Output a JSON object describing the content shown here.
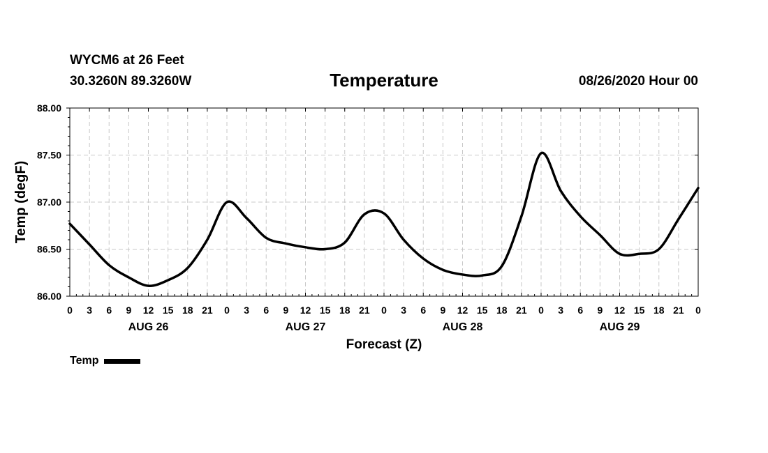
{
  "header": {
    "station": "WYCM6 at 26 Feet",
    "coords": "30.3260N 89.3260W",
    "title": "Temperature",
    "datetime": "08/26/2020 Hour 00"
  },
  "legend": {
    "label": "Temp"
  },
  "chart_data": {
    "type": "line",
    "title": "Temperature",
    "xlabel": "Forecast (Z)",
    "ylabel": "Temp (degF)",
    "xlim": [
      0,
      96
    ],
    "ylim": [
      86.0,
      88.0
    ],
    "yticks": [
      "86.00",
      "86.50",
      "87.00",
      "87.50",
      "88.00"
    ],
    "xtick_labels": [
      "0",
      "3",
      "6",
      "9",
      "12",
      "15",
      "18",
      "21",
      "0",
      "3",
      "6",
      "9",
      "12",
      "15",
      "18",
      "21",
      "0",
      "3",
      "6",
      "9",
      "12",
      "15",
      "18",
      "21",
      "0",
      "3",
      "6",
      "9",
      "12",
      "15",
      "18",
      "21",
      "0"
    ],
    "day_labels": [
      {
        "label": "AUG 26",
        "hour": 12
      },
      {
        "label": "AUG 27",
        "hour": 36
      },
      {
        "label": "AUG 28",
        "hour": 60
      },
      {
        "label": "AUG 29",
        "hour": 84
      }
    ],
    "grid": true,
    "series": [
      {
        "name": "Temp",
        "x": [
          0,
          3,
          6,
          9,
          12,
          15,
          18,
          21,
          24,
          27,
          30,
          33,
          36,
          39,
          42,
          45,
          48,
          51,
          54,
          57,
          60,
          63,
          66,
          69,
          72,
          75,
          78,
          81,
          84,
          87,
          90,
          93,
          96
        ],
        "values": [
          86.77,
          86.55,
          86.33,
          86.2,
          86.11,
          86.17,
          86.3,
          86.6,
          87.0,
          86.83,
          86.62,
          86.56,
          86.52,
          86.5,
          86.57,
          86.87,
          86.88,
          86.6,
          86.4,
          86.28,
          86.23,
          86.22,
          86.32,
          86.85,
          87.52,
          87.12,
          86.85,
          86.65,
          86.45,
          86.45,
          86.5,
          86.82,
          87.15
        ]
      }
    ]
  }
}
